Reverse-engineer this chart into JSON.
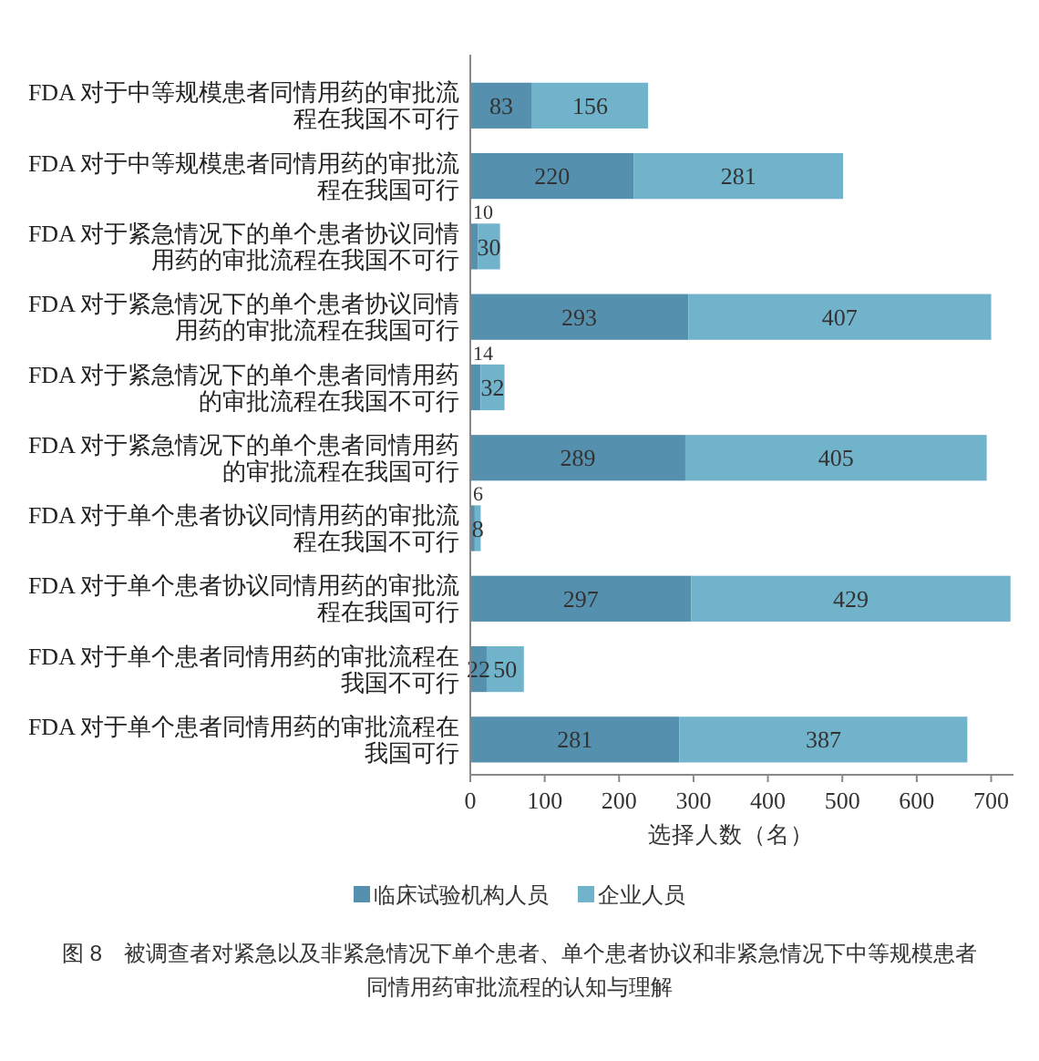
{
  "chart_data": {
    "type": "bar",
    "orientation": "horizontal",
    "stacked": true,
    "categories": [
      "FDA 对于中等规模患者同情用药的审批流程在我国不可行",
      "FDA 对于中等规模患者同情用药的审批流程在我国可行",
      "FDA 对于紧急情况下的单个患者协议同情用药的审批流程在我国不可行",
      "FDA 对于紧急情况下的单个患者协议同情用药的审批流程在我国可行",
      "FDA 对于紧急情况下的单个患者同情用药的审批流程在我国不可行",
      "FDA 对于紧急情况下的单个患者同情用药的审批流程在我国可行",
      "FDA 对于单个患者协议同情用药的审批流程在我国不可行",
      "FDA 对于单个患者协议同情用药的审批流程在我国可行",
      "FDA 对于单个患者同情用药的审批流程在我国不可行",
      "FDA 对于单个患者同情用药的审批流程在我国可行"
    ],
    "series": [
      {
        "name": "临床试验机构人员",
        "color": "#5591ae",
        "values": [
          83,
          220,
          10,
          293,
          14,
          289,
          6,
          297,
          22,
          281
        ]
      },
      {
        "name": "企业人员",
        "color": "#72b3cc",
        "values": [
          156,
          281,
          30,
          407,
          32,
          405,
          8,
          429,
          50,
          387
        ]
      }
    ],
    "xlim": [
      0,
      730
    ],
    "xticks": [
      0,
      100,
      200,
      300,
      400,
      500,
      600,
      700
    ],
    "xlabel": "选择人数（名）",
    "legend": "bottom",
    "data_labels": true,
    "grid": false,
    "annotations": [
      "图 8　被调查者对紧急以及非紧急情况下单个患者、单个患者协议和非紧急情况下中等规模患者同情用药审批流程的认知与理解"
    ]
  }
}
